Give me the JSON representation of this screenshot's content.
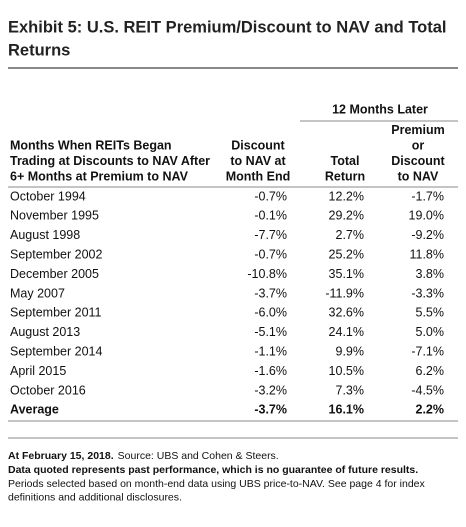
{
  "header": {
    "title_lines": [
      "Exhibit 5: U.S. REIT Premium/Discount to NAV and Total",
      "Returns"
    ]
  },
  "table": {
    "group_header": "12 Months Later",
    "columns": [
      [
        "Months When REITs Began",
        "Trading at Discounts to NAV After",
        "6+ Months at Premium to NAV"
      ],
      [
        "Discount",
        "to NAV at",
        "Month End"
      ],
      [
        "Total",
        "Return"
      ],
      [
        "Premium",
        "or",
        "Discount",
        "to NAV"
      ]
    ],
    "rows": [
      [
        "October 1994",
        "-0.7%",
        "12.2%",
        "-1.7%"
      ],
      [
        "November 1995",
        "-0.1%",
        "29.2%",
        "19.0%"
      ],
      [
        "August 1998",
        "-7.7%",
        "2.7%",
        "-9.2%"
      ],
      [
        "September 2002",
        "-0.7%",
        "25.2%",
        "11.8%"
      ],
      [
        "December 2005",
        "-10.8%",
        "35.1%",
        "3.8%"
      ],
      [
        "May 2007",
        "-3.7%",
        "-11.9%",
        "-3.3%"
      ],
      [
        "September 2011",
        "-6.0%",
        "32.6%",
        "5.5%"
      ],
      [
        "August 2013",
        "-5.1%",
        "24.1%",
        "5.0%"
      ],
      [
        "September 2014",
        "-1.1%",
        "9.9%",
        "-7.1%"
      ],
      [
        "April 2015",
        "-1.6%",
        "10.5%",
        "6.2%"
      ],
      [
        "October 2016",
        "-3.2%",
        "7.3%",
        "-4.5%"
      ]
    ],
    "average": [
      "Average",
      "-3.7%",
      "16.1%",
      "2.2%"
    ]
  },
  "footnotes": {
    "date": "At February 15, 2018.",
    "source": "Source: UBS and Cohen & Steers.",
    "disclaimer": "Data quoted represents past performance, which is no guarantee of future results.",
    "note_lines": [
      "Periods selected based on month-end data using UBS price-to-NAV. See page 4 for index",
      "definitions and additional disclosures."
    ]
  }
}
